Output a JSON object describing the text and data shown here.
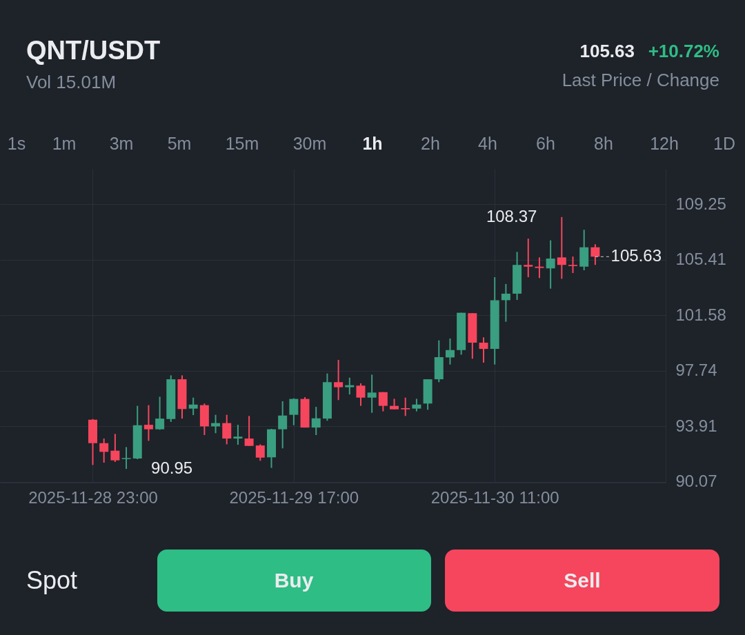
{
  "chart_data": {
    "type": "candlestick",
    "title": "QNT/USDT",
    "subtitle": "Vol 15.01M",
    "x": [
      "2025-11-28T23:00",
      "2025-11-29T00:00",
      "2025-11-29T01:00",
      "2025-11-29T02:00",
      "2025-11-29T03:00",
      "2025-11-29T04:00",
      "2025-11-29T05:00",
      "2025-11-29T06:00",
      "2025-11-29T07:00",
      "2025-11-29T08:00",
      "2025-11-29T09:00",
      "2025-11-29T10:00",
      "2025-11-29T11:00",
      "2025-11-29T12:00",
      "2025-11-29T13:00",
      "2025-11-29T14:00",
      "2025-11-29T15:00",
      "2025-11-29T16:00",
      "2025-11-29T17:00",
      "2025-11-29T18:00",
      "2025-11-29T19:00",
      "2025-11-29T20:00",
      "2025-11-29T21:00",
      "2025-11-29T22:00",
      "2025-11-29T23:00",
      "2025-11-30T00:00",
      "2025-11-30T01:00",
      "2025-11-30T02:00",
      "2025-11-30T03:00",
      "2025-11-30T04:00",
      "2025-11-30T05:00",
      "2025-11-30T06:00",
      "2025-11-30T07:00",
      "2025-11-30T08:00",
      "2025-11-30T09:00",
      "2025-11-30T10:00",
      "2025-11-30T11:00",
      "2025-11-30T12:00",
      "2025-11-30T13:00",
      "2025-11-30T14:00",
      "2025-11-30T15:00",
      "2025-11-30T16:00",
      "2025-11-30T17:00",
      "2025-11-30T18:00",
      "2025-11-30T19:00",
      "2025-11-30T20:00"
    ],
    "ohlc": [
      [
        94.35,
        94.4,
        91.22,
        92.73
      ],
      [
        92.73,
        93.05,
        91.38,
        92.13
      ],
      [
        92.21,
        93.37,
        91.43,
        91.54
      ],
      [
        91.63,
        92.46,
        90.95,
        91.7
      ],
      [
        91.67,
        95.31,
        91.62,
        93.97
      ],
      [
        94.0,
        95.36,
        92.89,
        93.69
      ],
      [
        93.69,
        95.94,
        93.66,
        94.43
      ],
      [
        94.4,
        97.42,
        94.2,
        97.15
      ],
      [
        97.15,
        97.42,
        94.43,
        95.09
      ],
      [
        95.12,
        95.88,
        94.67,
        95.4
      ],
      [
        95.36,
        95.47,
        93.29,
        93.89
      ],
      [
        93.89,
        94.69,
        93.42,
        94.12
      ],
      [
        94.12,
        94.69,
        92.65,
        93.05
      ],
      [
        93.05,
        94.0,
        92.62,
        93.18
      ],
      [
        93.05,
        94.61,
        92.54,
        92.54
      ],
      [
        92.57,
        92.65,
        91.51,
        91.73
      ],
      [
        91.75,
        93.72,
        91.02,
        93.69
      ],
      [
        93.69,
        95.63,
        92.37,
        94.64
      ],
      [
        94.69,
        95.83,
        93.97,
        95.79
      ],
      [
        95.79,
        95.91,
        93.81,
        93.81
      ],
      [
        93.81,
        95.24,
        93.29,
        94.45
      ],
      [
        94.43,
        97.55,
        94.28,
        96.95
      ],
      [
        96.95,
        98.49,
        95.71,
        96.6
      ],
      [
        96.6,
        97.26,
        96.1,
        96.74
      ],
      [
        96.71,
        96.87,
        95.31,
        95.88
      ],
      [
        95.88,
        97.47,
        94.83,
        96.23
      ],
      [
        96.26,
        96.26,
        94.93,
        95.31
      ],
      [
        95.31,
        95.8,
        95.07,
        95.07
      ],
      [
        95.15,
        95.88,
        94.61,
        95.07
      ],
      [
        95.12,
        95.8,
        94.93,
        95.4
      ],
      [
        95.47,
        97.15,
        95.04,
        97.15
      ],
      [
        97.15,
        99.84,
        96.95,
        98.68
      ],
      [
        98.66,
        99.97,
        98.17,
        99.17
      ],
      [
        99.17,
        101.75,
        98.85,
        101.75
      ],
      [
        101.72,
        101.72,
        98.57,
        99.68
      ],
      [
        99.68,
        100.05,
        98.3,
        99.25
      ],
      [
        99.25,
        104.21,
        98.17,
        102.62
      ],
      [
        102.62,
        103.74,
        101.13,
        103.07
      ],
      [
        103.07,
        105.96,
        102.64,
        105.06
      ],
      [
        105.06,
        106.88,
        104.21,
        104.94
      ],
      [
        104.94,
        105.58,
        104.15,
        104.85
      ],
      [
        104.82,
        106.76,
        103.42,
        105.5
      ],
      [
        105.58,
        108.37,
        104.1,
        105.06
      ],
      [
        105.06,
        105.64,
        104.5,
        104.98
      ],
      [
        104.94,
        107.49,
        104.69,
        106.28
      ],
      [
        106.28,
        106.49,
        105.06,
        105.63
      ]
    ],
    "colors": [
      "#f6465d",
      "#f6465d",
      "#f6465d",
      "#3a9e80",
      "#3a9e80",
      "#f6465d",
      "#3a9e80",
      "#3a9e80",
      "#f6465d",
      "#3a9e80",
      "#f6465d",
      "#3a9e80",
      "#f6465d",
      "#3a9e80",
      "#f6465d",
      "#f6465d",
      "#3a9e80",
      "#3a9e80",
      "#3a9e80",
      "#f6465d",
      "#3a9e80",
      "#3a9e80",
      "#f6465d",
      "#3a9e80",
      "#f6465d",
      "#3a9e80",
      "#f6465d",
      "#f6465d",
      "#f6465d",
      "#3a9e80",
      "#3a9e80",
      "#3a9e80",
      "#3a9e80",
      "#3a9e80",
      "#f6465d",
      "#f6465d",
      "#3a9e80",
      "#3a9e80",
      "#3a9e80",
      "#f6465d",
      "#f6465d",
      "#3a9e80",
      "#f6465d",
      "#f6465d",
      "#3a9e80",
      "#f6465d"
    ],
    "xlim": [
      "2025-11-28T15:00",
      "2025-12-01T02:00"
    ],
    "xticks": [
      {
        "value": "2025-11-28T23:00",
        "label": "2025-11-28 23:00"
      },
      {
        "value": "2025-11-29T17:00",
        "label": "2025-11-29 17:00"
      },
      {
        "value": "2025-11-30T11:00",
        "label": "2025-11-30 11:00"
      }
    ],
    "ylim": [
      90.0,
      111.7
    ],
    "yticks": [
      90.07,
      93.91,
      97.74,
      101.58,
      105.41,
      109.25
    ],
    "grid": true,
    "ref_lines": [
      {
        "axis": "y",
        "value": 105.63,
        "label": "105.63",
        "line_style": "dashed"
      }
    ],
    "annotations": [
      "105.63",
      "+10.72%",
      "Last Price / Change",
      "1s",
      "1m",
      "3m",
      "5m",
      "15m",
      "30m",
      "1h",
      "2h",
      "4h",
      "6h",
      "8h",
      "12h",
      "1D",
      "Spot",
      "Buy",
      "Sell",
      {
        "text": "108.37",
        "x": "2025-11-30T17:00",
        "y": 108.37
      },
      {
        "text": "90.95",
        "x": "2025-11-29T02:00",
        "y": 90.95
      }
    ]
  }
}
